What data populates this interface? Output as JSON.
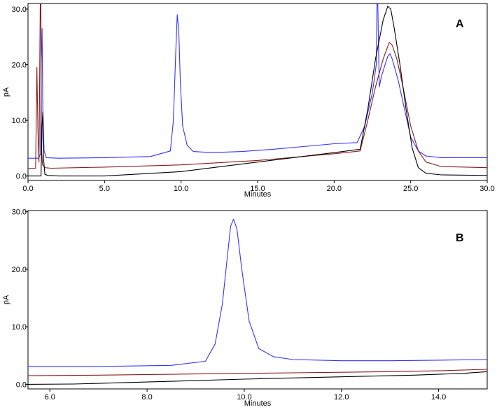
{
  "chart_data": [
    {
      "type": "line",
      "panel_label": "A",
      "xlabel": "Minutes",
      "ylabel": "pA",
      "xlim": [
        0,
        30
      ],
      "ylim": [
        -0.8,
        31
      ],
      "xticks": [
        0,
        5,
        10,
        15,
        20,
        25,
        30
      ],
      "xtick_labels": [
        "0.0",
        "5.0",
        "10.0",
        "15.0",
        "20.0",
        "25.0",
        "30.0"
      ],
      "yticks": [
        0,
        10,
        20,
        30
      ],
      "ytick_labels": [
        "0.0",
        "10.0",
        "20.0",
        "30.0"
      ],
      "grid": false,
      "series": [
        {
          "color": "#3333ff",
          "x": [
            0,
            0.7,
            0.82,
            0.86,
            0.92,
            0.97,
            1.05,
            1.2,
            2,
            5,
            8,
            9.3,
            9.5,
            9.65,
            9.75,
            9.85,
            9.95,
            10.1,
            10.4,
            10.8,
            12,
            14,
            16,
            18,
            20,
            21.5,
            22.0,
            22.5,
            22.75,
            22.8,
            22.85,
            22.95,
            23.1,
            23.5,
            23.65,
            23.8,
            24.2,
            24.6,
            25,
            25.5,
            26,
            27,
            30
          ],
          "y": [
            3.2,
            3.2,
            4,
            20,
            26.5,
            12,
            4.5,
            3.3,
            3.2,
            3.3,
            3.5,
            4.5,
            10,
            22,
            29,
            26,
            17,
            9,
            5.5,
            4.4,
            4.2,
            4.4,
            4.8,
            5.3,
            5.8,
            6.0,
            9,
            15,
            20,
            31,
            31,
            16,
            18,
            21.5,
            22,
            21,
            17,
            12,
            7,
            4.5,
            3.6,
            3.3,
            3.3
          ]
        },
        {
          "color": "#8b1a1a",
          "x": [
            0,
            0.5,
            0.58,
            0.65,
            0.72,
            0.8,
            0.84,
            0.88,
            0.95,
            1.1,
            1.5,
            5,
            10,
            15,
            20,
            21.7,
            22.2,
            22.7,
            23.2,
            23.6,
            23.8,
            24.1,
            24.5,
            25,
            25.5,
            26,
            27,
            30
          ],
          "y": [
            1.4,
            1.4,
            19.5,
            8,
            2.5,
            31,
            31,
            5,
            2,
            1.5,
            1.4,
            1.6,
            2.0,
            2.8,
            4.0,
            4.5,
            10,
            16,
            21,
            24,
            23.5,
            21,
            16,
            9,
            4.5,
            2.5,
            1.7,
            1.5
          ]
        },
        {
          "color": "#000000",
          "x": [
            0,
            0.85,
            0.92,
            0.97,
            1.02,
            1.1,
            1.3,
            2,
            5,
            10,
            15,
            20,
            21.7,
            22.2,
            22.7,
            23.2,
            23.5,
            23.7,
            23.9,
            24.3,
            24.7,
            25.1,
            25.5,
            26,
            27,
            30
          ],
          "y": [
            0,
            0,
            9,
            11.5,
            3,
            0.3,
            0.1,
            0,
            0,
            0.8,
            2.5,
            4.2,
            4.8,
            12,
            21,
            28,
            30.5,
            30,
            27,
            20,
            12,
            5,
            1.5,
            0.5,
            0.2,
            0.1
          ]
        }
      ]
    },
    {
      "type": "line",
      "panel_label": "B",
      "xlabel": "Minutes",
      "ylabel": "pA",
      "xlim": [
        5.55,
        15
      ],
      "ylim": [
        -0.8,
        30.2
      ],
      "xticks": [
        6,
        8,
        10,
        12,
        14
      ],
      "xtick_labels": [
        "6.0",
        "8.0",
        "10.0",
        "12.0",
        "14.0"
      ],
      "yticks": [
        0,
        10,
        20,
        30
      ],
      "ytick_labels": [
        "0.0",
        "10.0",
        "20.0",
        "30.0"
      ],
      "grid": false,
      "series": [
        {
          "color": "#3333ff",
          "x": [
            5.55,
            7,
            8.5,
            9.2,
            9.4,
            9.55,
            9.65,
            9.72,
            9.78,
            9.85,
            9.95,
            10.1,
            10.3,
            10.6,
            11,
            12,
            13,
            14,
            15
          ],
          "y": [
            3.1,
            3.1,
            3.3,
            4.0,
            7,
            14,
            22,
            27.5,
            28.7,
            27,
            20,
            11,
            6.2,
            4.8,
            4.3,
            4.1,
            4.1,
            4.2,
            4.3
          ]
        },
        {
          "color": "#8b1a1a",
          "x": [
            5.55,
            7,
            9,
            11,
            13,
            14,
            15
          ],
          "y": [
            1.5,
            1.6,
            1.8,
            2.0,
            2.2,
            2.35,
            2.6
          ]
        },
        {
          "color": "#000000",
          "x": [
            5.55,
            6.5,
            8,
            10,
            12,
            13.5,
            14.5,
            15
          ],
          "y": [
            0,
            0.05,
            0.4,
            0.9,
            1.3,
            1.6,
            1.9,
            2.2
          ]
        }
      ]
    }
  ]
}
